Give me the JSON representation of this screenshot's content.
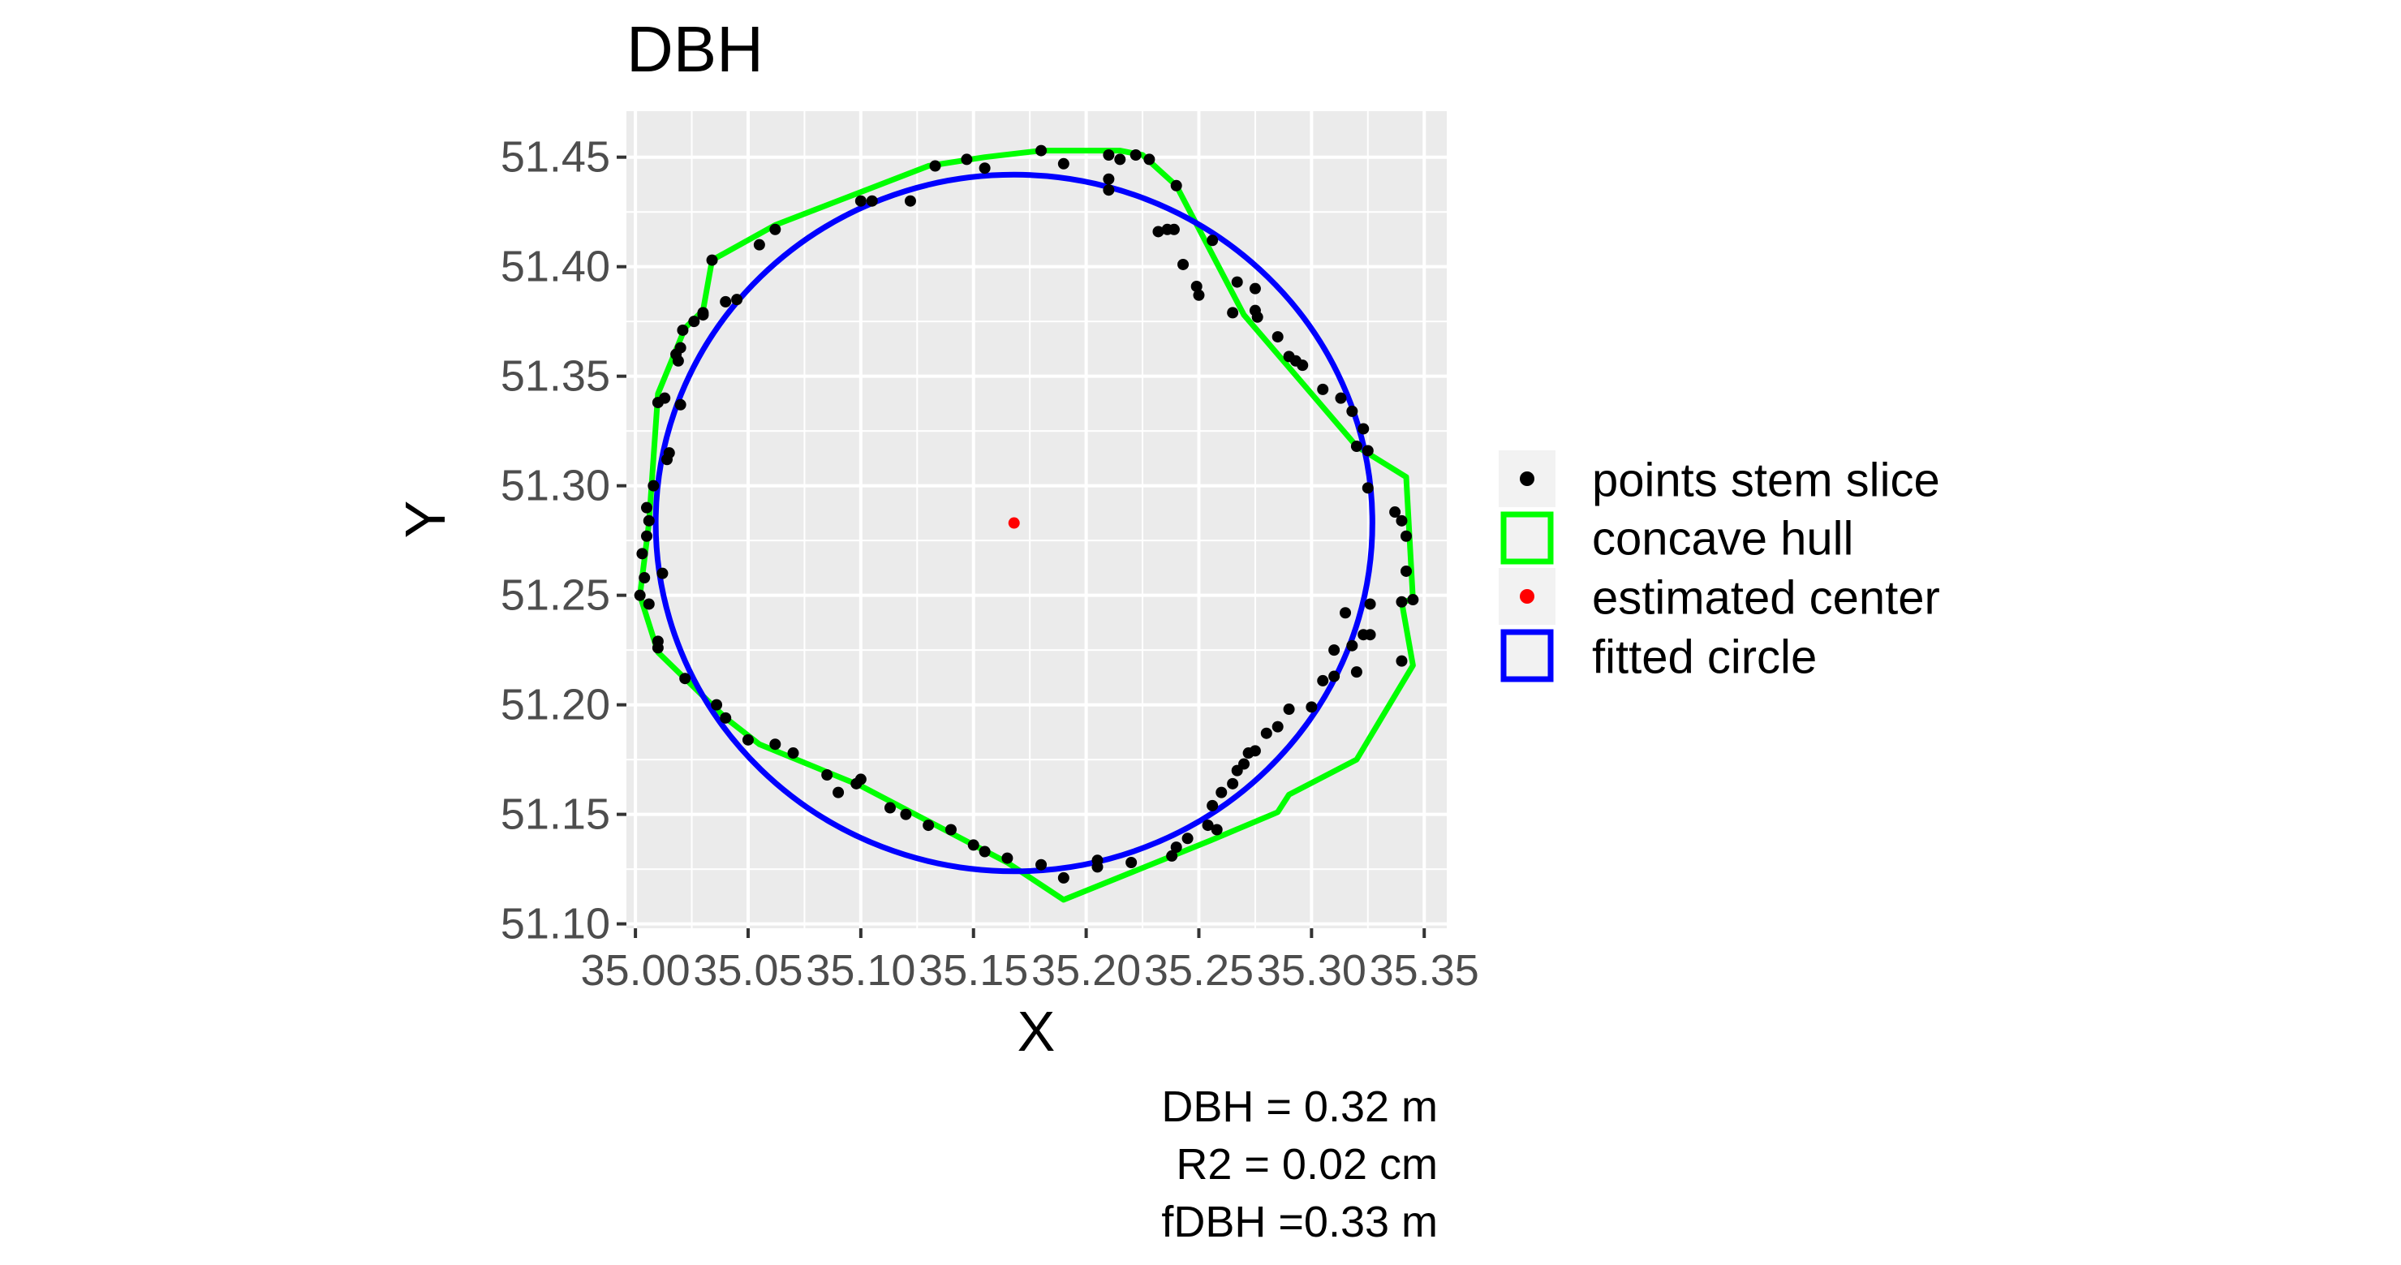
{
  "chart_data": {
    "type": "scatter",
    "title": "DBH",
    "xlabel": "X",
    "ylabel": "Y",
    "xlim": [
      34.996,
      35.36
    ],
    "ylim": [
      51.098,
      51.471
    ],
    "x_ticks": [
      35.0,
      35.05,
      35.1,
      35.15,
      35.2,
      35.25,
      35.3,
      35.35
    ],
    "x_tick_labels": [
      "35.00",
      "35.05",
      "35.10",
      "35.15",
      "35.20",
      "35.25",
      "35.30",
      "35.35"
    ],
    "y_ticks": [
      51.1,
      51.15,
      51.2,
      51.25,
      51.3,
      51.35,
      51.4,
      51.45
    ],
    "y_tick_labels": [
      "51.10",
      "51.15",
      "51.20",
      "51.25",
      "51.30",
      "51.35",
      "51.40",
      "51.45"
    ],
    "grid": true,
    "legend_position": "right",
    "legend": [
      {
        "label": "points stem slice",
        "type": "point",
        "color": "#000000"
      },
      {
        "label": "concave hull",
        "type": "square-outline",
        "color": "#00ff00"
      },
      {
        "label": "estimated center",
        "type": "point",
        "color": "#ff0000"
      },
      {
        "label": "fitted circle",
        "type": "square-outline",
        "color": "#0000ff"
      }
    ],
    "points_stem_slice": [
      [
        35.003,
        51.269
      ],
      [
        35.002,
        51.25
      ],
      [
        35.004,
        51.258
      ],
      [
        35.005,
        51.277
      ],
      [
        35.006,
        51.284
      ],
      [
        35.01,
        51.229
      ],
      [
        35.01,
        51.338
      ],
      [
        35.013,
        51.34
      ],
      [
        35.015,
        51.315
      ],
      [
        35.014,
        51.312
      ],
      [
        35.02,
        51.337
      ],
      [
        35.02,
        51.363
      ],
      [
        35.019,
        51.357
      ],
      [
        35.021,
        51.371
      ],
      [
        35.026,
        51.375
      ],
      [
        35.03,
        51.379
      ],
      [
        35.034,
        51.403
      ],
      [
        35.04,
        51.384
      ],
      [
        35.045,
        51.385
      ],
      [
        35.055,
        51.41
      ],
      [
        35.062,
        51.417
      ],
      [
        35.105,
        51.43
      ],
      [
        35.122,
        51.43
      ],
      [
        35.133,
        51.446
      ],
      [
        35.147,
        51.449
      ],
      [
        35.155,
        51.445
      ],
      [
        35.18,
        51.453
      ],
      [
        35.19,
        51.447
      ],
      [
        35.21,
        51.451
      ],
      [
        35.215,
        51.449
      ],
      [
        35.222,
        51.451
      ],
      [
        35.228,
        51.449
      ],
      [
        35.21,
        51.44
      ],
      [
        35.21,
        51.435
      ],
      [
        35.232,
        51.416
      ],
      [
        35.236,
        51.417
      ],
      [
        35.239,
        51.417
      ],
      [
        35.24,
        51.437
      ],
      [
        35.243,
        51.401
      ],
      [
        35.249,
        51.391
      ],
      [
        35.25,
        51.387
      ],
      [
        35.256,
        51.412
      ],
      [
        35.265,
        51.379
      ],
      [
        35.267,
        51.393
      ],
      [
        35.275,
        51.38
      ],
      [
        35.276,
        51.377
      ],
      [
        35.285,
        51.368
      ],
      [
        35.29,
        51.359
      ],
      [
        35.293,
        51.357
      ],
      [
        35.296,
        51.355
      ],
      [
        35.305,
        51.344
      ],
      [
        35.313,
        51.34
      ],
      [
        35.318,
        51.334
      ],
      [
        35.323,
        51.326
      ],
      [
        35.325,
        51.316
      ],
      [
        35.32,
        51.318
      ],
      [
        35.325,
        51.299
      ],
      [
        35.337,
        51.288
      ],
      [
        35.34,
        51.284
      ],
      [
        35.342,
        51.277
      ],
      [
        35.342,
        51.261
      ],
      [
        35.345,
        51.248
      ],
      [
        35.34,
        51.247
      ],
      [
        35.34,
        51.22
      ],
      [
        35.326,
        51.246
      ],
      [
        35.323,
        51.232
      ],
      [
        35.326,
        51.232
      ],
      [
        35.315,
        51.242
      ],
      [
        35.318,
        51.227
      ],
      [
        35.31,
        51.225
      ],
      [
        35.31,
        51.213
      ],
      [
        35.305,
        51.211
      ],
      [
        35.3,
        51.199
      ],
      [
        35.29,
        51.198
      ],
      [
        35.285,
        51.19
      ],
      [
        35.28,
        51.187
      ],
      [
        35.275,
        51.179
      ],
      [
        35.272,
        51.178
      ],
      [
        35.27,
        51.173
      ],
      [
        35.267,
        51.17
      ],
      [
        35.265,
        51.164
      ],
      [
        35.26,
        51.16
      ],
      [
        35.256,
        51.154
      ],
      [
        35.254,
        51.145
      ],
      [
        35.258,
        51.143
      ],
      [
        35.245,
        51.139
      ],
      [
        35.24,
        51.135
      ],
      [
        35.238,
        51.131
      ],
      [
        35.22,
        51.128
      ],
      [
        35.205,
        51.129
      ],
      [
        35.205,
        51.126
      ],
      [
        35.19,
        51.121
      ],
      [
        35.18,
        51.127
      ],
      [
        35.165,
        51.13
      ],
      [
        35.155,
        51.133
      ],
      [
        35.15,
        51.136
      ],
      [
        35.14,
        51.143
      ],
      [
        35.13,
        51.145
      ],
      [
        35.12,
        51.15
      ],
      [
        35.113,
        51.153
      ],
      [
        35.1,
        51.166
      ],
      [
        35.098,
        51.164
      ],
      [
        35.09,
        51.16
      ],
      [
        35.085,
        51.168
      ],
      [
        35.07,
        51.178
      ],
      [
        35.062,
        51.182
      ],
      [
        35.05,
        51.184
      ],
      [
        35.04,
        51.194
      ],
      [
        35.036,
        51.2
      ],
      [
        35.022,
        51.212
      ],
      [
        35.01,
        51.226
      ],
      [
        35.006,
        51.246
      ],
      [
        35.012,
        51.26
      ],
      [
        35.008,
        51.3
      ],
      [
        35.005,
        51.29
      ],
      [
        35.03,
        51.378
      ],
      [
        35.018,
        51.36
      ],
      [
        35.1,
        51.43
      ],
      [
        35.275,
        51.39
      ],
      [
        35.32,
        51.215
      ]
    ],
    "concave_hull": [
      [
        35.002,
        51.25
      ],
      [
        35.01,
        51.224
      ],
      [
        35.04,
        51.194
      ],
      [
        35.055,
        51.182
      ],
      [
        35.1,
        51.163
      ],
      [
        35.165,
        51.128
      ],
      [
        35.19,
        51.111
      ],
      [
        35.255,
        51.138
      ],
      [
        35.285,
        51.151
      ],
      [
        35.29,
        51.159
      ],
      [
        35.32,
        51.175
      ],
      [
        35.345,
        51.218
      ],
      [
        35.34,
        51.247
      ],
      [
        35.345,
        51.248
      ],
      [
        35.342,
        51.304
      ],
      [
        35.32,
        51.318
      ],
      [
        35.3,
        51.342
      ],
      [
        35.27,
        51.378
      ],
      [
        35.24,
        51.437
      ],
      [
        35.225,
        51.451
      ],
      [
        35.215,
        51.453
      ],
      [
        35.18,
        51.453
      ],
      [
        35.155,
        51.45
      ],
      [
        35.13,
        51.446
      ],
      [
        35.062,
        51.419
      ],
      [
        35.034,
        51.403
      ],
      [
        35.03,
        51.38
      ],
      [
        35.022,
        51.372
      ],
      [
        35.01,
        51.342
      ],
      [
        35.006,
        51.283
      ],
      [
        35.002,
        51.25
      ]
    ],
    "estimated_center": [
      35.168,
      51.283
    ],
    "fitted_circle": {
      "center": [
        35.168,
        51.283
      ],
      "radius": 0.159
    },
    "annotations": [
      "DBH = 0.32 m",
      "R2 = 0.02 cm",
      "fDBH =0.33 m"
    ]
  }
}
